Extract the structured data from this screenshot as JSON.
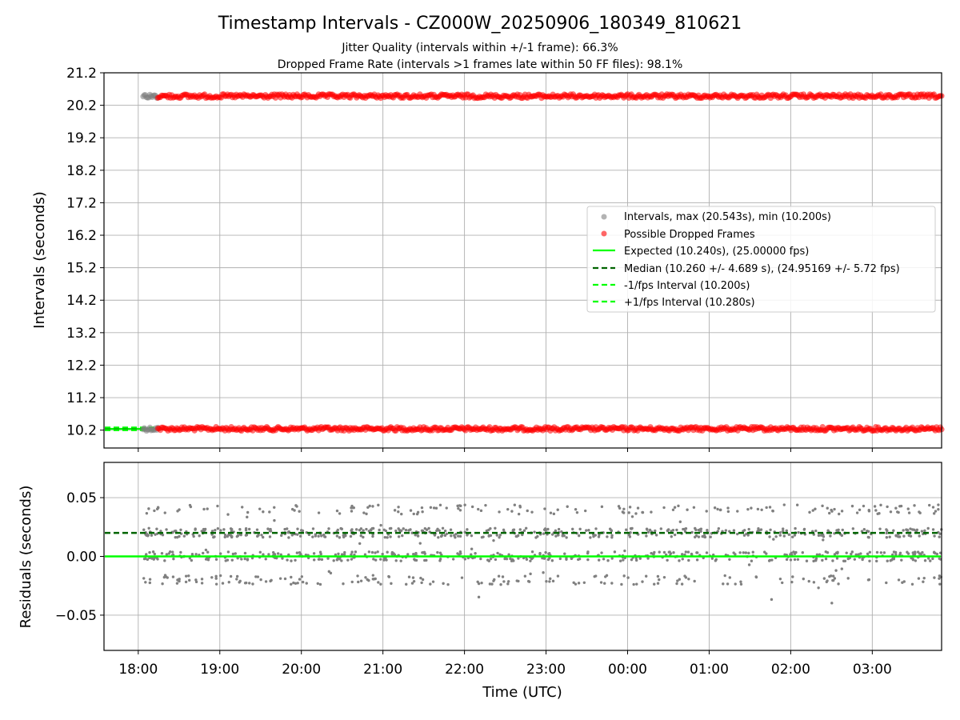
{
  "title": "Timestamp Intervals - CZ000W_20250906_180349_810621",
  "subtitle_1": "Jitter Quality (intervals within +/-1 frame): 66.3%",
  "subtitle_2": "Dropped Frame Rate (intervals >1 frames late within 50 FF files): 98.1%",
  "colors": {
    "intervals": "#808080",
    "dropped": "#ff0000",
    "expected": "#00ff00",
    "median": "#006400",
    "fps_band": "#00ff00",
    "grid": "#b0b0b0"
  },
  "chart_data": [
    {
      "type": "scatter",
      "panel": "top",
      "ylabel": "Intervals (seconds)",
      "xlabel": "",
      "x_ticks": [
        "18:00",
        "19:00",
        "20:00",
        "21:00",
        "22:00",
        "23:00",
        "00:00",
        "01:00",
        "02:00",
        "03:00"
      ],
      "y_ticks": [
        "10.2",
        "11.2",
        "12.2",
        "13.2",
        "14.2",
        "15.2",
        "16.2",
        "17.2",
        "18.2",
        "19.2",
        "20.2",
        "21.2"
      ],
      "ylim": [
        9.65,
        21.2
      ],
      "xlim_hours_after_1800": [
        -0.42,
        9.85
      ],
      "grid": true,
      "legend_position": "center-right",
      "series": [
        {
          "name": "Intervals, max (20.543s), min (10.200s)",
          "kind": "points",
          "color": "#808080",
          "levels": [
            10.24,
            20.48
          ],
          "x_range_hours": [
            0.06,
            0.24
          ]
        },
        {
          "name": "Possible Dropped Frames",
          "kind": "points",
          "color": "#ff0000",
          "levels": [
            10.24,
            20.48
          ],
          "x_range_hours": [
            0.24,
            9.85
          ]
        },
        {
          "name": "Expected (10.240s), (25.00000 fps)",
          "kind": "line",
          "style": "solid",
          "color": "#00ff00",
          "value": 10.24,
          "x_range_hours": [
            -0.42,
            0.2
          ]
        },
        {
          "name": "Median (10.260 +/- 4.689 s), (24.95169 +/- 5.72 fps)",
          "kind": "line",
          "style": "dashed",
          "color": "#006400",
          "value": 10.26,
          "x_range_hours": [
            -0.42,
            0.2
          ]
        },
        {
          "name": "-1/fps Interval (10.200s)",
          "kind": "line",
          "style": "dashed",
          "color": "#00ff00",
          "value": 10.2,
          "x_range_hours": [
            -0.42,
            0.2
          ]
        },
        {
          "name": "+1/fps Interval (10.280s)",
          "kind": "line",
          "style": "dashed",
          "color": "#00ff00",
          "value": 10.28,
          "x_range_hours": [
            -0.42,
            0.2
          ]
        }
      ]
    },
    {
      "type": "scatter",
      "panel": "bottom",
      "xlabel": "Time (UTC)",
      "ylabel": "Residuals (seconds)",
      "x_ticks": [
        "18:00",
        "19:00",
        "20:00",
        "21:00",
        "22:00",
        "23:00",
        "00:00",
        "01:00",
        "02:00",
        "03:00"
      ],
      "y_ticks": [
        "0.05",
        "0.00",
        "−0.05"
      ],
      "ylim": [
        -0.08,
        0.08
      ],
      "xlim_hours_after_1800": [
        -0.42,
        9.85
      ],
      "grid": true,
      "series": [
        {
          "name": "Residuals",
          "kind": "points",
          "color": "#808080",
          "clusters": [
            0.04,
            0.02,
            0.0,
            -0.02
          ],
          "spread": 0.004,
          "min": -0.04,
          "max": 0.047,
          "x_range_hours": [
            0.06,
            9.85
          ]
        },
        {
          "name": "Median residual",
          "kind": "line",
          "style": "dashed",
          "color": "#006400",
          "value": 0.02
        },
        {
          "name": "Zero residual",
          "kind": "line",
          "style": "solid",
          "color": "#00ff00",
          "value": 0.0
        }
      ]
    }
  ]
}
